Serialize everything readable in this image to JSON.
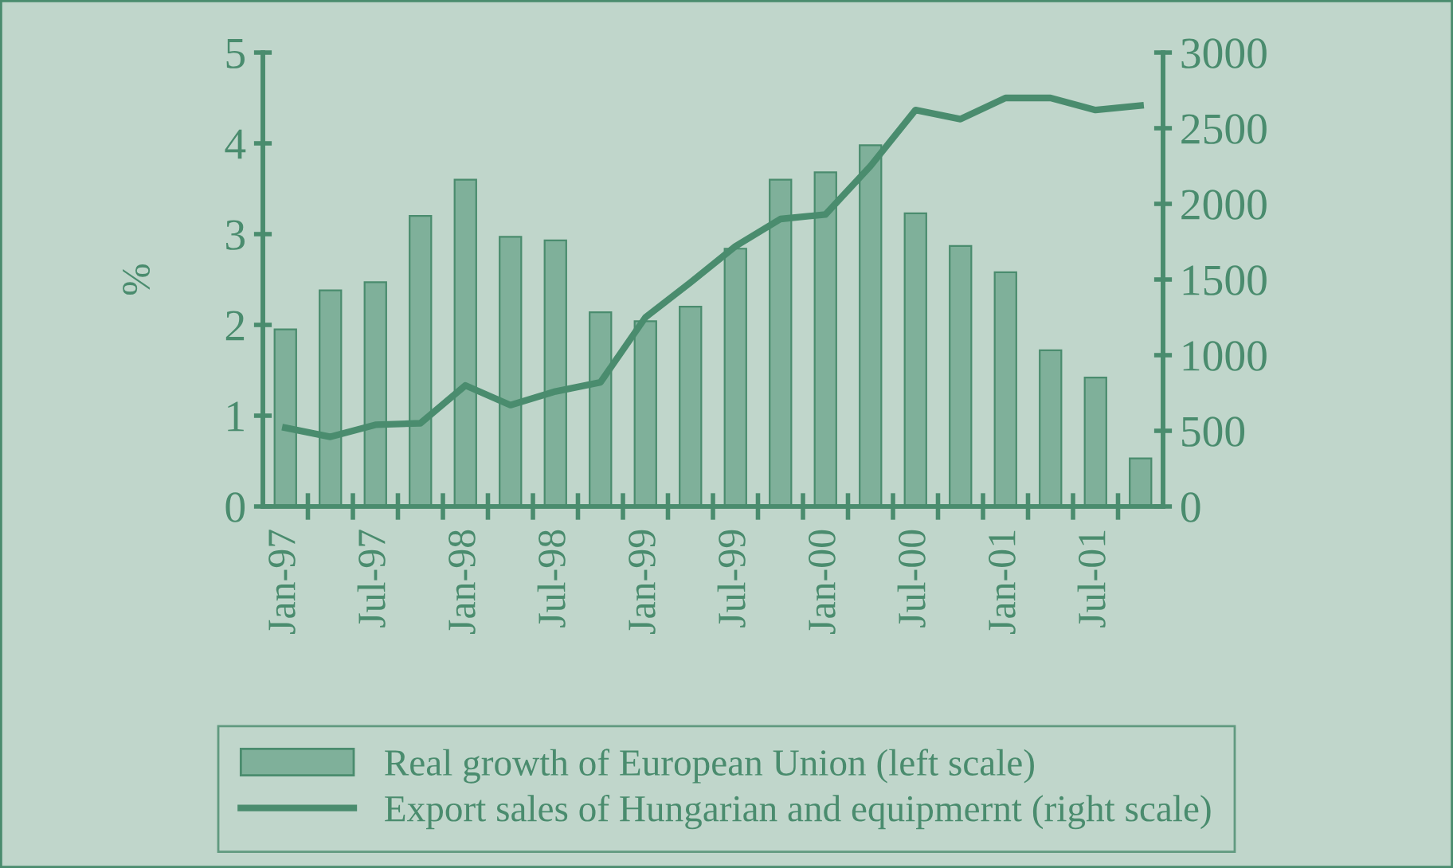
{
  "chart_data": {
    "type": "bar",
    "ylabel": "%",
    "categories": [
      "Jan-97",
      null,
      "Jul-97",
      null,
      "Jan-98",
      null,
      "Jul-98",
      null,
      "Jan-99",
      null,
      "Jul-99",
      null,
      "Jan-00",
      null,
      "Jul-00",
      null,
      "Jan-01",
      null,
      "Jul-01",
      null
    ],
    "series": [
      {
        "name": "Real growth of European Union (left scale)",
        "color": "#7fb09a",
        "values": [
          1.95,
          2.38,
          2.47,
          3.2,
          3.6,
          2.97,
          2.93,
          2.14,
          2.04,
          2.2,
          2.84,
          3.6,
          3.68,
          3.98,
          3.23,
          2.87,
          2.58,
          1.72,
          1.42,
          0.53
        ]
      },
      {
        "name": "Export sales of Hungarian and equipmernt (right scale)",
        "type": "line",
        "axis": "y2",
        "color": "#4a8c6e",
        "values": [
          520,
          460,
          540,
          550,
          800,
          670,
          760,
          820,
          1250,
          1480,
          1720,
          1900,
          1930,
          2250,
          2620,
          2560,
          2700,
          2700,
          2620,
          2650
        ]
      }
    ],
    "ylim": [
      0,
      5
    ],
    "yticks": [
      0,
      1,
      2,
      3,
      4,
      5
    ],
    "y2lim": [
      0,
      3000
    ],
    "y2ticks": [
      0,
      500,
      1000,
      1500,
      2000,
      2500,
      3000
    ],
    "legend": "bottom",
    "grid": false,
    "line_style": "solid",
    "marker": "none"
  }
}
